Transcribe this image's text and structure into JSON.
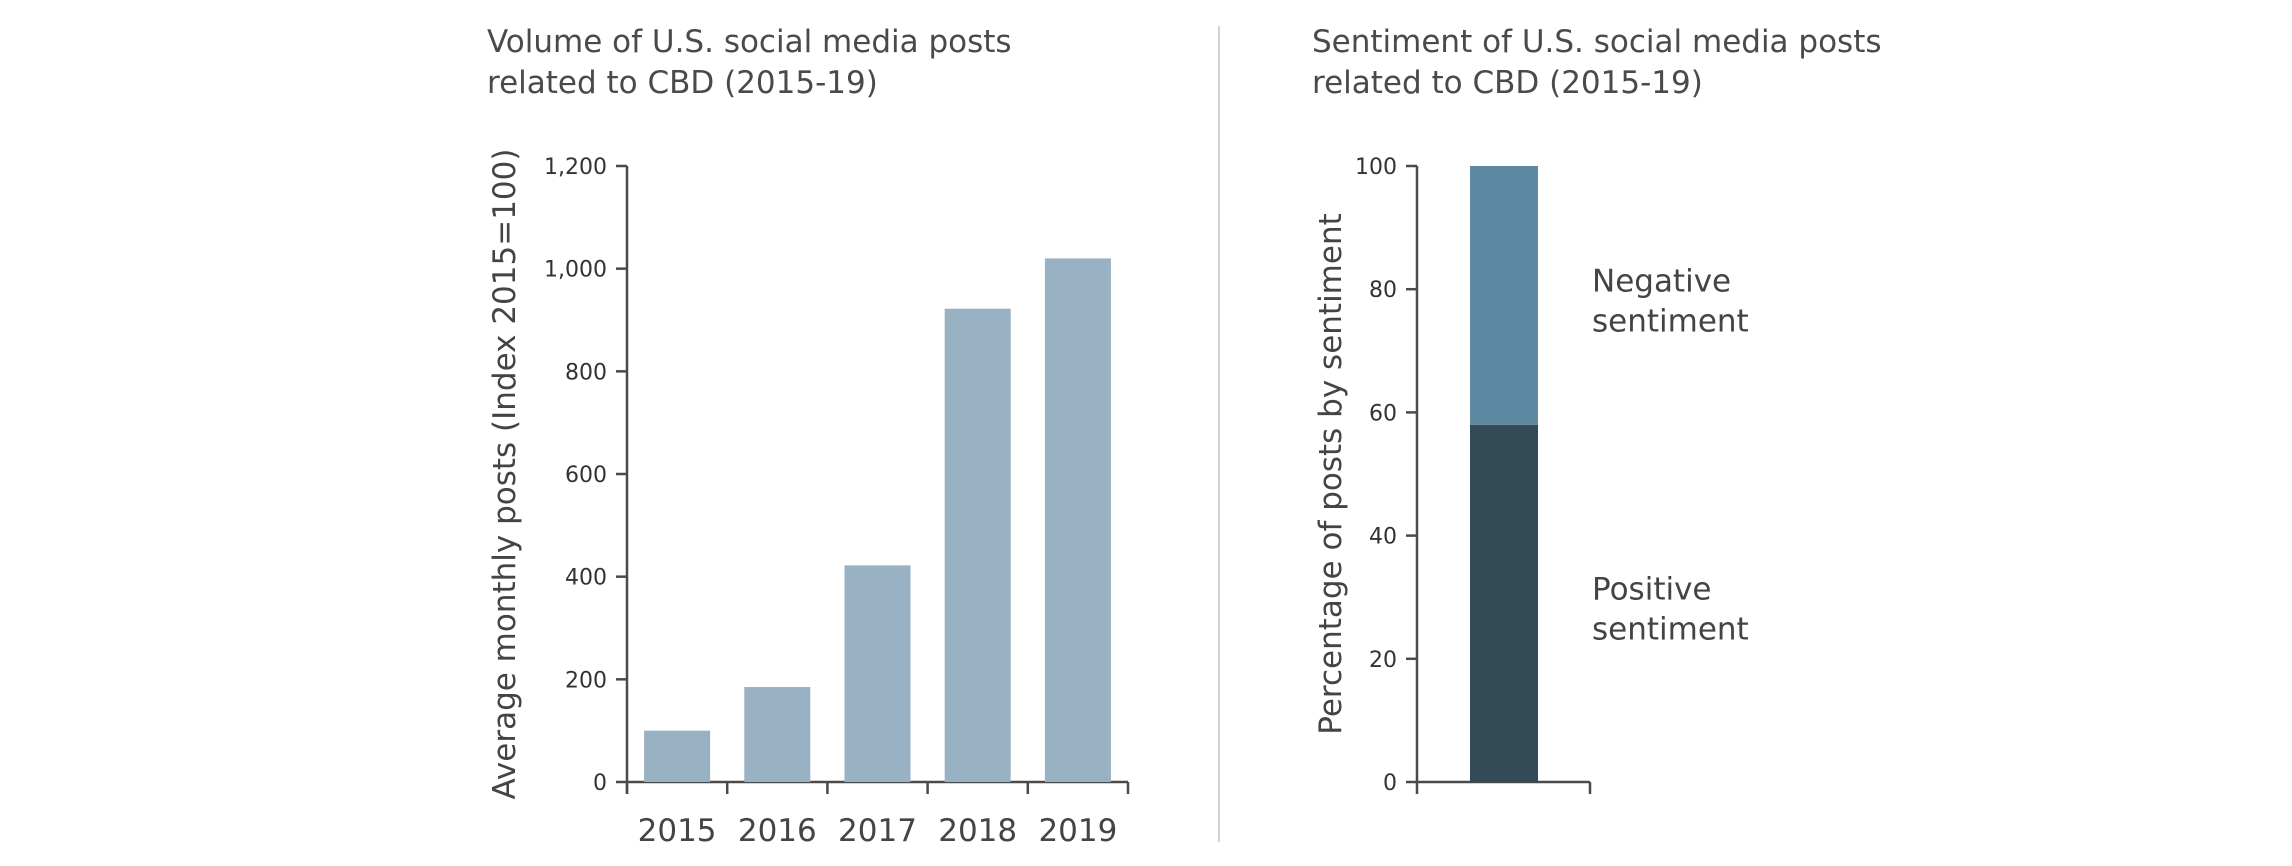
{
  "chart_data": [
    {
      "type": "bar",
      "title_lines": [
        "Volume of U.S. social media posts",
        "related to CBD (2015-19)"
      ],
      "xlabel": "",
      "ylabel": "Average monthly posts (Index 2015=100)",
      "categories": [
        "2015",
        "2016",
        "2017",
        "2018",
        "2019"
      ],
      "values": [
        100,
        185,
        422,
        922,
        1020
      ],
      "ylim": [
        0,
        1200
      ],
      "yticks": [
        0,
        200,
        400,
        600,
        800,
        1000,
        1200
      ],
      "ytick_labels": [
        "0",
        "200",
        "400",
        "600",
        "800",
        "1,000",
        "1,200"
      ],
      "grid": false,
      "color": "#98b1c3"
    },
    {
      "type": "bar",
      "stacked": true,
      "title_lines": [
        "Sentiment of U.S. social media posts",
        "related to CBD (2015-19)"
      ],
      "xlabel": "",
      "ylabel": "Percentage of posts by sentiment",
      "ylim": [
        0,
        100
      ],
      "yticks": [
        0,
        20,
        40,
        60,
        80,
        100
      ],
      "ytick_labels": [
        "0",
        "20",
        "40",
        "60",
        "80",
        "100"
      ],
      "grid": false,
      "series": [
        {
          "name_lines": [
            "Positive",
            "sentiment"
          ],
          "value": 58,
          "color": "#334b57"
        },
        {
          "name_lines": [
            "Negative",
            "sentiment"
          ],
          "value": 42,
          "color": "#5e89a2"
        }
      ]
    }
  ]
}
